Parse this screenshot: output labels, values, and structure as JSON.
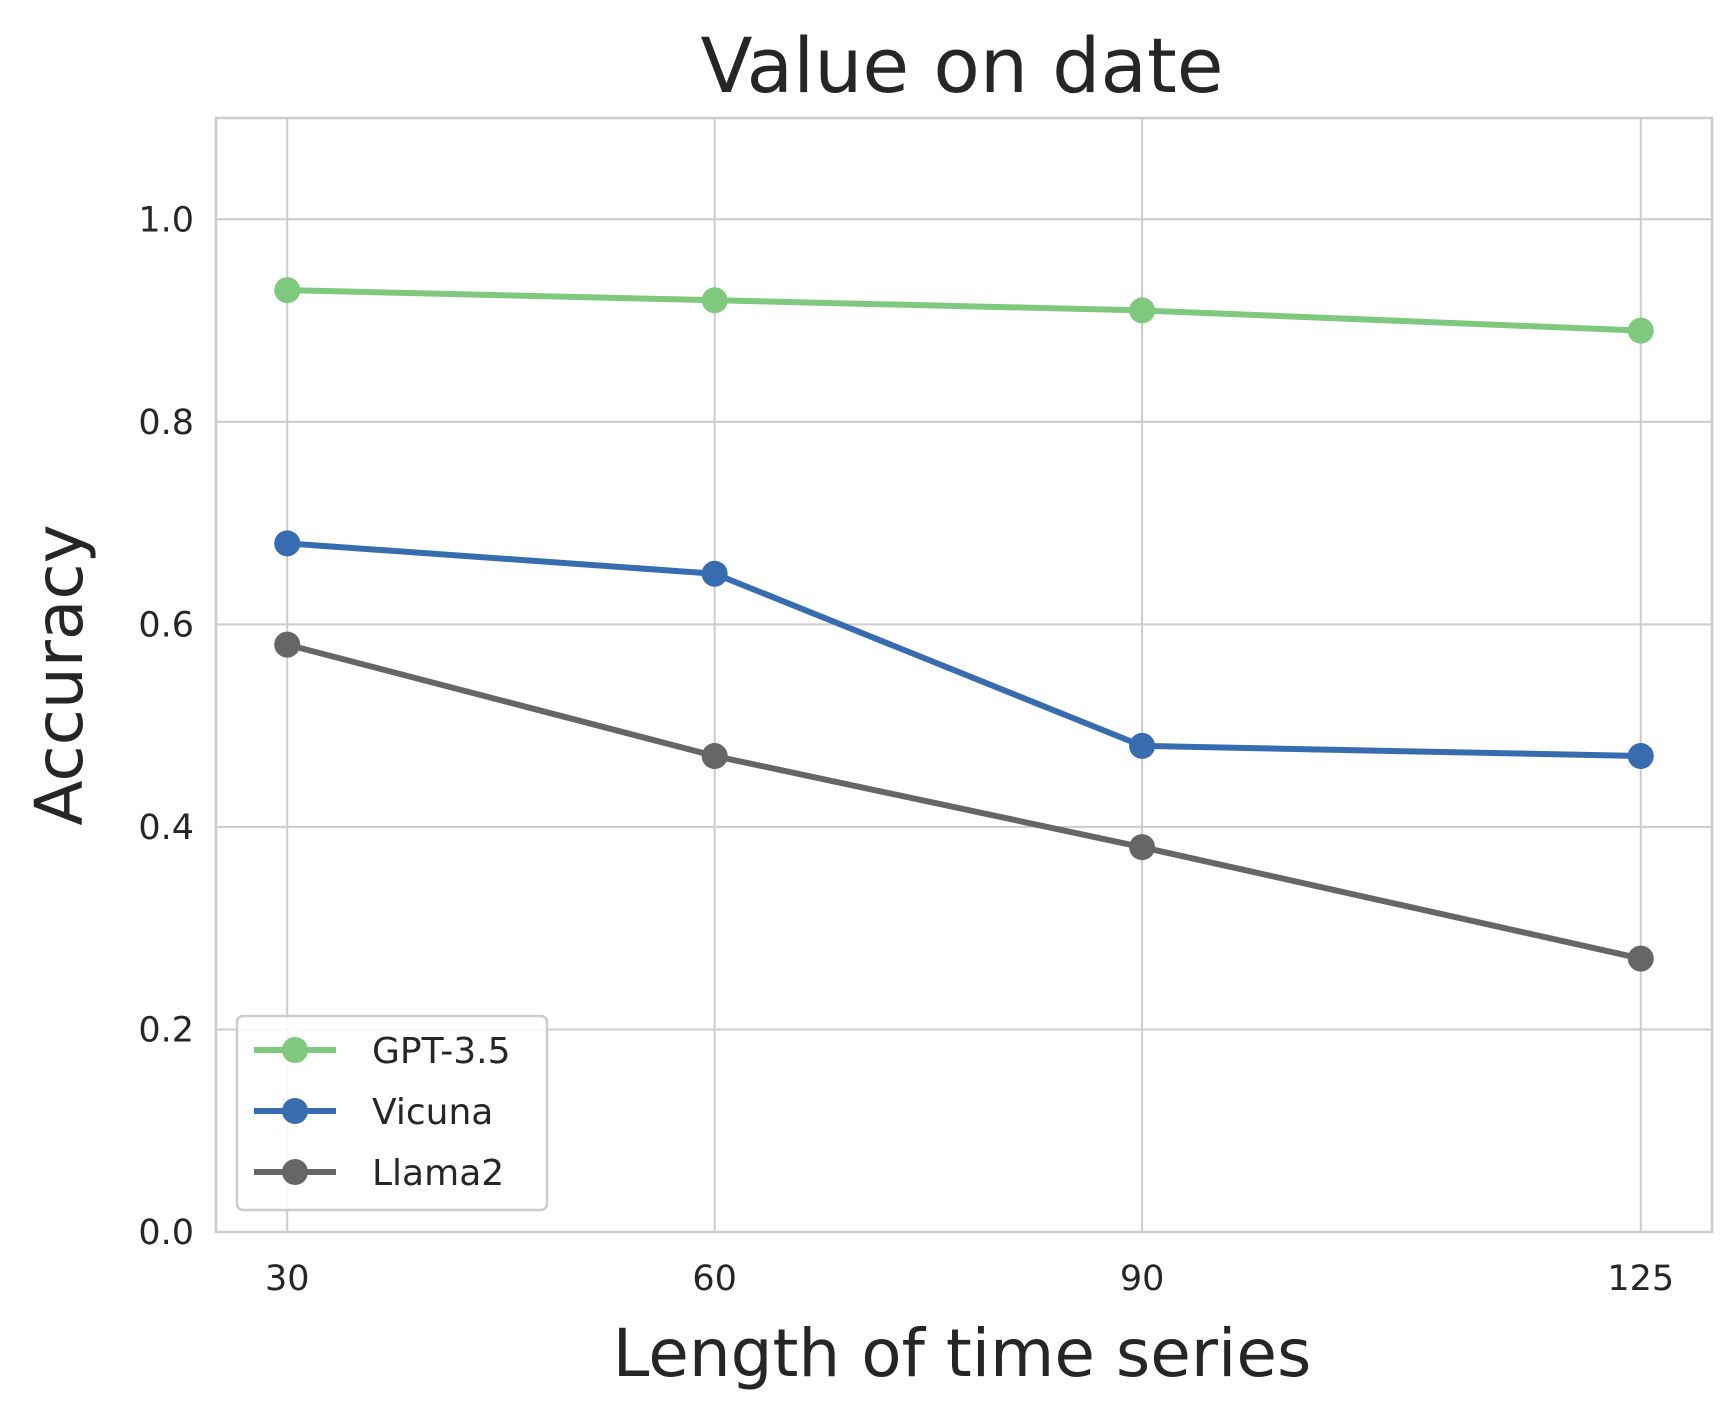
{
  "chart_data": {
    "type": "line",
    "title": "Value on date",
    "xlabel": "Length of time series",
    "ylabel": "Accuracy",
    "x": [
      30,
      60,
      90,
      125
    ],
    "x_tick_labels": [
      "30",
      "60",
      "90",
      "125"
    ],
    "y_ticks": [
      0.0,
      0.2,
      0.4,
      0.6,
      0.8,
      1.0
    ],
    "y_tick_labels": [
      "0.0",
      "0.2",
      "0.4",
      "0.6",
      "0.8",
      "1.0"
    ],
    "ylim": [
      0.0,
      1.1
    ],
    "grid": true,
    "legend_position": "lower-left",
    "series": [
      {
        "name": "GPT-3.5",
        "color": "#7fc97f",
        "values": [
          0.93,
          0.92,
          0.91,
          0.89
        ]
      },
      {
        "name": "Vicuna",
        "color": "#386cb0",
        "values": [
          0.68,
          0.65,
          0.48,
          0.47
        ]
      },
      {
        "name": "Llama2",
        "color": "#666666",
        "values": [
          0.58,
          0.47,
          0.38,
          0.27
        ]
      }
    ]
  }
}
